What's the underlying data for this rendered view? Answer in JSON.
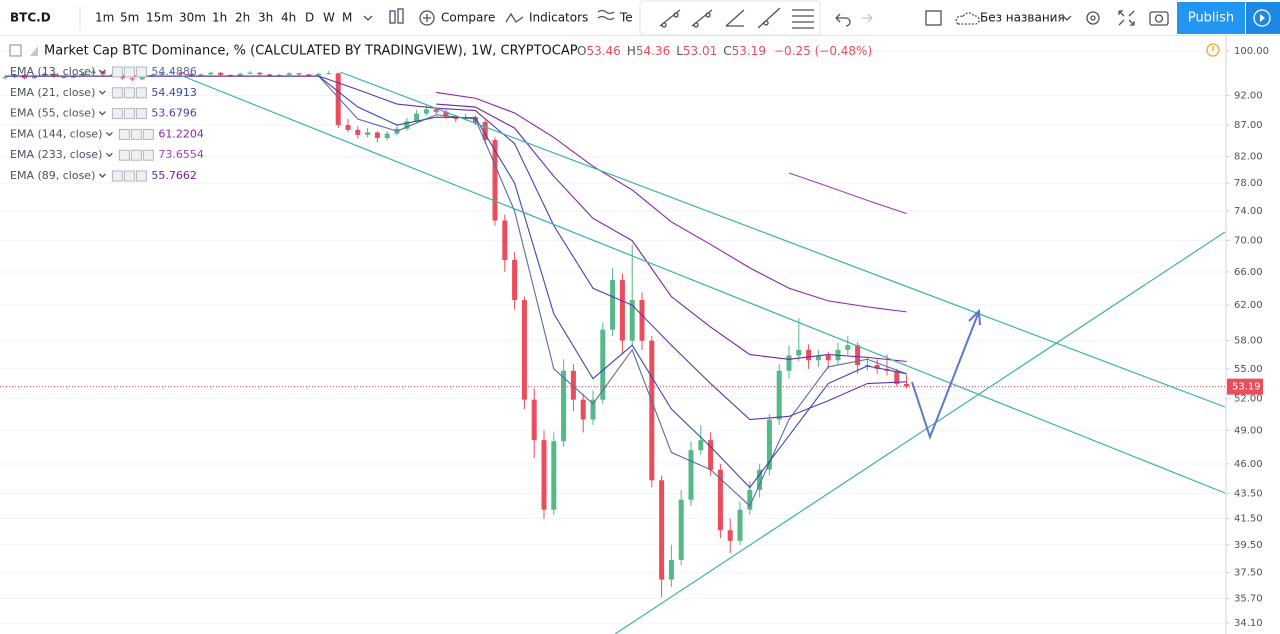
{
  "toolbar": {
    "symbol": "BTC.D",
    "intervals": [
      "1m",
      "5m",
      "15m",
      "30m",
      "1h",
      "2h",
      "3h",
      "4h",
      "D",
      "W",
      "M"
    ],
    "active_interval": "W",
    "compare": "Compare",
    "indicators": "Indicators",
    "templates": "Te",
    "layout_name": "Без названия",
    "publish": "Publish"
  },
  "chart_data": {
    "type": "candlestick",
    "title": "Market Cap BTC Dominance, % (CALCULATED BY TRADINGVIEW), 1W, CRYPTOCAP",
    "ohlc_labels": [
      "O",
      "H",
      "L",
      "C"
    ],
    "change_label": "−0.25 (−0.48%)",
    "up_color": "#53b987",
    "down_color": "#eb4d5c",
    "log_scale": true,
    "grid": true,
    "ylim": [
      34.1,
      100
    ],
    "yticks": [
      {
        "value": 100,
        "label": "100.00"
      },
      {
        "value": 92,
        "label": "92.00"
      },
      {
        "value": 87,
        "label": "87.00"
      },
      {
        "value": 82,
        "label": "82.00"
      },
      {
        "value": 78,
        "label": "78.00"
      },
      {
        "value": 74,
        "label": "74.00"
      },
      {
        "value": 70,
        "label": "70.00"
      },
      {
        "value": 66,
        "label": "66.00"
      },
      {
        "value": 62,
        "label": "62.00"
      },
      {
        "value": 58,
        "label": "58.00"
      },
      {
        "value": 55,
        "label": "55.00"
      },
      {
        "value": 52,
        "label": "52.00"
      },
      {
        "value": 49,
        "label": "49.00"
      },
      {
        "value": 46,
        "label": "46.00"
      },
      {
        "value": 43.5,
        "label": "43.50"
      },
      {
        "value": 41.5,
        "label": "41.50"
      },
      {
        "value": 39.5,
        "label": "39.50"
      },
      {
        "value": 37.5,
        "label": "37.50"
      },
      {
        "value": 35.7,
        "label": "35.70"
      },
      {
        "value": 34.1,
        "label": "34.10"
      }
    ],
    "candles": [
      [
        95.0,
        95.5,
        94.8,
        95.2
      ],
      [
        95.2,
        95.8,
        95.0,
        95.6
      ],
      [
        95.6,
        95.8,
        94.8,
        95.0
      ],
      [
        95.0,
        95.6,
        94.9,
        95.4
      ],
      [
        95.4,
        96.0,
        95.2,
        95.8
      ],
      [
        95.8,
        95.9,
        95.1,
        95.3
      ],
      [
        95.3,
        95.4,
        94.9,
        95.1
      ],
      [
        95.1,
        95.7,
        95.0,
        95.5
      ],
      [
        95.5,
        96.1,
        95.4,
        95.9
      ],
      [
        95.9,
        96.5,
        95.8,
        96.2
      ],
      [
        96.2,
        96.3,
        95.5,
        95.7
      ],
      [
        95.7,
        95.8,
        95.2,
        95.4
      ],
      [
        95.4,
        95.5,
        94.7,
        95.0
      ],
      [
        95.0,
        95.1,
        94.5,
        94.8
      ],
      [
        94.8,
        95.5,
        94.7,
        95.3
      ],
      [
        95.3,
        95.8,
        95.2,
        95.6
      ],
      [
        95.6,
        96.1,
        95.5,
        95.9
      ],
      [
        95.9,
        96.4,
        95.8,
        96.1
      ],
      [
        96.1,
        96.2,
        95.6,
        95.8
      ],
      [
        95.8,
        95.9,
        95.3,
        95.5
      ],
      [
        95.5,
        95.9,
        95.4,
        95.7
      ],
      [
        95.7,
        96.2,
        95.6,
        96.0
      ],
      [
        96.0,
        96.1,
        95.4,
        95.6
      ],
      [
        95.6,
        95.7,
        95.2,
        95.4
      ],
      [
        95.4,
        96.0,
        95.3,
        95.8
      ],
      [
        95.8,
        96.3,
        95.7,
        96.0
      ],
      [
        96.0,
        96.1,
        95.5,
        95.7
      ],
      [
        95.7,
        95.8,
        95.3,
        95.5
      ],
      [
        95.5,
        95.8,
        95.4,
        95.6
      ],
      [
        95.6,
        96.1,
        95.5,
        95.9
      ],
      [
        95.9,
        96.0,
        95.5,
        95.7
      ],
      [
        95.7,
        95.8,
        95.3,
        95.5
      ],
      [
        95.5,
        96.0,
        95.4,
        95.8
      ],
      [
        95.8,
        96.3,
        95.7,
        95.9
      ],
      [
        95.9,
        96.0,
        86.5,
        87.0
      ],
      [
        87.0,
        88.0,
        85.8,
        86.2
      ],
      [
        86.2,
        86.8,
        84.8,
        85.4
      ],
      [
        85.4,
        86.5,
        85.0,
        85.8
      ],
      [
        85.8,
        86.0,
        84.2,
        84.9
      ],
      [
        84.9,
        86.0,
        84.5,
        85.6
      ],
      [
        85.6,
        87.0,
        85.3,
        86.4
      ],
      [
        86.4,
        88.2,
        86.1,
        87.6
      ],
      [
        87.6,
        89.5,
        87.4,
        88.9
      ],
      [
        88.9,
        90.3,
        88.6,
        89.6
      ],
      [
        89.6,
        90.0,
        88.8,
        89.2
      ],
      [
        89.2,
        89.5,
        88.0,
        88.4
      ],
      [
        88.4,
        88.7,
        87.5,
        88.0
      ],
      [
        88.0,
        88.9,
        87.7,
        88.3
      ],
      [
        88.3,
        88.6,
        87.0,
        87.5
      ],
      [
        87.5,
        87.8,
        84.0,
        84.6
      ],
      [
        84.6,
        85.0,
        72.0,
        72.7
      ],
      [
        72.7,
        73.5,
        66.0,
        67.5
      ],
      [
        67.5,
        68.5,
        61.5,
        62.6
      ],
      [
        62.6,
        63.0,
        51.0,
        51.9
      ],
      [
        51.9,
        53.0,
        46.5,
        48.1
      ],
      [
        48.1,
        49.0,
        41.5,
        42.2
      ],
      [
        42.2,
        48.8,
        41.8,
        48.0
      ],
      [
        48.0,
        56.0,
        47.5,
        54.8
      ],
      [
        54.8,
        55.5,
        50.8,
        51.9
      ],
      [
        51.9,
        52.5,
        48.8,
        50.0
      ],
      [
        50.0,
        52.8,
        49.5,
        51.9
      ],
      [
        51.9,
        60.0,
        51.5,
        59.2
      ],
      [
        59.2,
        66.5,
        58.5,
        65.0
      ],
      [
        65.0,
        65.8,
        56.5,
        58.0
      ],
      [
        58.0,
        69.5,
        57.5,
        62.6
      ],
      [
        62.6,
        63.5,
        57.0,
        58.0
      ],
      [
        58.0,
        58.5,
        44.0,
        44.6
      ],
      [
        44.6,
        45.0,
        35.8,
        37.0
      ],
      [
        37.0,
        39.5,
        36.5,
        38.4
      ],
      [
        38.4,
        43.8,
        38.0,
        43.0
      ],
      [
        43.0,
        48.0,
        42.5,
        47.2
      ],
      [
        47.2,
        49.5,
        46.8,
        48.1
      ],
      [
        48.1,
        48.8,
        45.0,
        45.5
      ],
      [
        45.5,
        46.0,
        40.0,
        40.6
      ],
      [
        40.6,
        41.5,
        38.9,
        39.8
      ],
      [
        39.8,
        42.8,
        39.5,
        42.2
      ],
      [
        42.2,
        44.5,
        41.8,
        43.8
      ],
      [
        43.8,
        46.0,
        43.2,
        45.5
      ],
      [
        45.5,
        50.5,
        45.0,
        50.0
      ],
      [
        50.0,
        55.5,
        49.5,
        54.8
      ],
      [
        54.8,
        57.5,
        54.0,
        56.4
      ],
      [
        56.4,
        60.5,
        55.8,
        57.0
      ],
      [
        57.0,
        57.6,
        55.0,
        55.9
      ],
      [
        55.9,
        57.0,
        55.2,
        56.4
      ],
      [
        56.4,
        56.8,
        55.0,
        55.9
      ],
      [
        55.9,
        57.8,
        55.5,
        57.0
      ],
      [
        57.0,
        58.5,
        56.5,
        57.5
      ],
      [
        57.5,
        57.8,
        54.5,
        55.4
      ],
      [
        55.4,
        56.2,
        54.8,
        55.4
      ],
      [
        55.4,
        56.0,
        54.5,
        55.0
      ],
      [
        55.0,
        56.5,
        54.3,
        54.8
      ],
      [
        54.8,
        55.0,
        53.2,
        53.46
      ],
      [
        53.46,
        54.36,
        53.01,
        53.19
      ]
    ],
    "indicators": [
      {
        "name": "EMA (13, close)",
        "color": "#5a6aa6",
        "values": [
          95.4,
          95.4,
          95.4,
          95.4,
          95.4,
          95.4,
          95.4,
          95.4,
          95.4,
          88.0,
          86.0,
          88.7,
          88.0,
          74.0,
          55.0,
          51.5,
          57.0,
          47.0,
          45.5,
          42.5,
          50.0,
          55.2,
          56.0,
          54.4886
        ]
      },
      {
        "name": "EMA (21, close)",
        "color": "#3949ab",
        "values": [
          95.4,
          95.4,
          95.4,
          95.4,
          95.4,
          95.4,
          95.4,
          95.4,
          95.4,
          90.0,
          87.0,
          88.3,
          88.2,
          78.0,
          61.0,
          54.0,
          57.5,
          51.0,
          47.5,
          44.0,
          48.5,
          53.5,
          55.3,
          54.4913
        ]
      },
      {
        "name": "EMA (55, close)",
        "color": "#5e35b1",
        "values": [
          95.4,
          95.4,
          95.4,
          95.4,
          95.4,
          95.4,
          95.4,
          95.4,
          95.4,
          93.0,
          90.5,
          89.8,
          89.4,
          84.0,
          72.0,
          64.0,
          62.0,
          57.5,
          53.5,
          50.0,
          50.3,
          51.8,
          53.5,
          53.6796
        ]
      },
      {
        "name": "EMA (144, close)",
        "color": "#8e24aa",
        "values": [
          null,
          null,
          null,
          null,
          null,
          null,
          null,
          null,
          null,
          null,
          null,
          92.5,
          91.5,
          89.0,
          85.0,
          80.5,
          77.0,
          72.5,
          69.5,
          66.5,
          64.0,
          62.5,
          61.8,
          61.2204
        ]
      },
      {
        "name": "EMA (233, close)",
        "color": "#a83cc0",
        "values": [
          null,
          null,
          null,
          null,
          null,
          null,
          null,
          null,
          null,
          null,
          null,
          null,
          null,
          null,
          null,
          null,
          null,
          null,
          null,
          null,
          79.5,
          77.5,
          75.5,
          73.6554
        ]
      },
      {
        "name": "EMA (89, close)",
        "color": "#7b1fa2",
        "values": [
          null,
          null,
          null,
          null,
          null,
          null,
          null,
          null,
          null,
          null,
          null,
          90.5,
          90.0,
          86.5,
          79.0,
          73.0,
          70.0,
          63.0,
          59.5,
          56.5,
          56.0,
          56.5,
          56.2,
          55.7662
        ]
      }
    ]
  }
}
